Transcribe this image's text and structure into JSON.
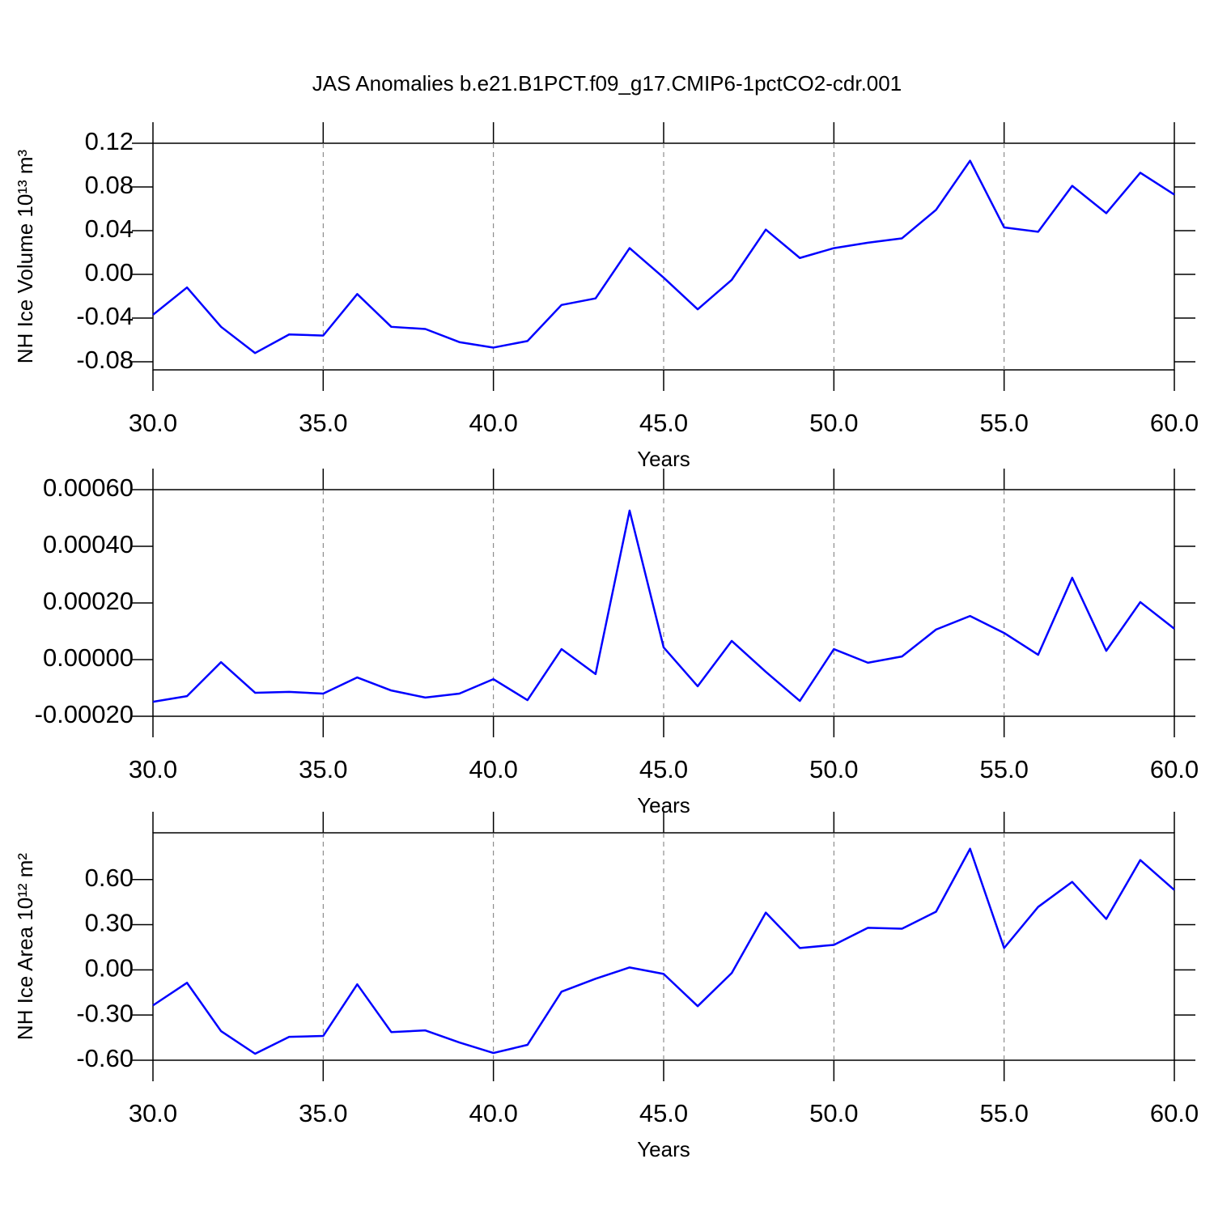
{
  "chart_data": [
    {
      "type": "line",
      "title": "JAS Anomalies b.e21.B1PCT.f09_g17.CMIP6-1pctCO2-cdr.001",
      "ylabel": "NH Ice Volume 10¹³ m³",
      "xlabel": "Years",
      "color": "#0000ff",
      "grid": true,
      "x": [
        30,
        31,
        32,
        33,
        34,
        35,
        36,
        37,
        38,
        39,
        40,
        41,
        42,
        43,
        44,
        45,
        46,
        47,
        48,
        49,
        50,
        51,
        52,
        53,
        54,
        55,
        56,
        57,
        58,
        59,
        60
      ],
      "values": [
        -0.037,
        -0.012,
        -0.048,
        -0.072,
        -0.055,
        -0.056,
        -0.018,
        -0.048,
        -0.05,
        -0.062,
        -0.067,
        -0.061,
        -0.028,
        -0.022,
        0.024,
        -0.003,
        -0.032,
        -0.005,
        0.041,
        0.015,
        0.024,
        0.029,
        0.033,
        0.059,
        0.104,
        0.043,
        0.039,
        0.081,
        0.056,
        0.093,
        0.073
      ],
      "xlim": [
        30,
        60
      ],
      "xticks": [
        {
          "value": 30,
          "label": "30.0"
        },
        {
          "value": 35,
          "label": "35.0"
        },
        {
          "value": 40,
          "label": "40.0"
        },
        {
          "value": 45,
          "label": "45.0"
        },
        {
          "value": 50,
          "label": "50.0"
        },
        {
          "value": 55,
          "label": "55.0"
        },
        {
          "value": 60,
          "label": "60.0"
        }
      ],
      "ylim": [
        -0.0874,
        0.12
      ],
      "yticks": [
        -0.08,
        -0.04,
        {
          "value": 0,
          "label": "0.00"
        },
        0.04,
        0.08,
        0.12
      ]
    },
    {
      "type": "line",
      "xlabel": "Years",
      "color": "#0000ff",
      "grid": true,
      "x": [
        30,
        31,
        32,
        33,
        34,
        35,
        36,
        37,
        38,
        39,
        40,
        41,
        42,
        43,
        44,
        45,
        46,
        47,
        48,
        49,
        50,
        51,
        52,
        53,
        54,
        55,
        56,
        57,
        58,
        59,
        60
      ],
      "values": [
        -0.000149,
        -0.000129,
        -9e-06,
        -0.000117,
        -0.000114,
        -0.00012,
        -6.3e-05,
        -0.000109,
        -0.000134,
        -0.00012,
        -6.9e-05,
        -0.000143,
        3.7e-05,
        -5.1e-05,
        0.000526,
        4.3e-05,
        -9.4e-05,
        6.6e-05,
        -4.3e-05,
        -0.000146,
        3.7e-05,
        -1.1e-05,
        1.1e-05,
        0.000106,
        0.000154,
        9.4e-05,
        1.7e-05,
        0.000289,
        3.1e-05,
        0.000203,
        0.000109
      ],
      "xlim": [
        30,
        60
      ],
      "xticks": [
        {
          "value": 30,
          "label": "30.0"
        },
        {
          "value": 35,
          "label": "35.0"
        },
        {
          "value": 40,
          "label": "40.0"
        },
        {
          "value": 45,
          "label": "45.0"
        },
        {
          "value": 50,
          "label": "50.0"
        },
        {
          "value": 55,
          "label": "55.0"
        },
        {
          "value": 60,
          "label": "60.0"
        }
      ],
      "ylim": [
        -0.0002,
        0.0006
      ],
      "yticks": [
        {
          "value": -0.0002,
          "label": "-0.00020"
        },
        {
          "value": 0,
          "label": "0.00000"
        },
        {
          "value": 0.0002,
          "label": "0.00020"
        },
        {
          "value": 0.0004,
          "label": "0.00040"
        },
        {
          "value": 0.0006,
          "label": "0.00060"
        }
      ]
    },
    {
      "type": "line",
      "ylabel": "NH Ice Area 10¹² m²",
      "xlabel": "Years",
      "color": "#0000ff",
      "grid": true,
      "x": [
        30,
        31,
        32,
        33,
        34,
        35,
        36,
        37,
        38,
        39,
        40,
        41,
        42,
        43,
        44,
        45,
        46,
        47,
        48,
        49,
        50,
        51,
        52,
        53,
        54,
        55,
        56,
        57,
        58,
        59,
        60
      ],
      "values": [
        -0.236,
        -0.086,
        -0.407,
        -0.557,
        -0.445,
        -0.439,
        -0.096,
        -0.413,
        -0.402,
        -0.482,
        -0.552,
        -0.498,
        -0.145,
        -0.059,
        0.016,
        -0.027,
        -0.241,
        -0.021,
        0.38,
        0.145,
        0.166,
        0.279,
        0.273,
        0.386,
        0.804,
        0.145,
        0.418,
        0.584,
        0.338,
        0.729,
        0.53
      ],
      "xlim": [
        30,
        60
      ],
      "xticks": [
        {
          "value": 30,
          "label": "30.0"
        },
        {
          "value": 35,
          "label": "35.0"
        },
        {
          "value": 40,
          "label": "40.0"
        },
        {
          "value": 45,
          "label": "45.0"
        },
        {
          "value": 50,
          "label": "50.0"
        },
        {
          "value": 55,
          "label": "55.0"
        },
        {
          "value": 60,
          "label": "60.0"
        }
      ],
      "ylim": [
        -0.6,
        0.91
      ],
      "yticks": [
        {
          "value": -0.6,
          "label": "-0.60"
        },
        {
          "value": -0.3,
          "label": "-0.30"
        },
        {
          "value": 0,
          "label": "0.00"
        },
        {
          "value": 0.3,
          "label": "0.30"
        },
        {
          "value": 0.6,
          "label": "0.60"
        }
      ]
    }
  ]
}
